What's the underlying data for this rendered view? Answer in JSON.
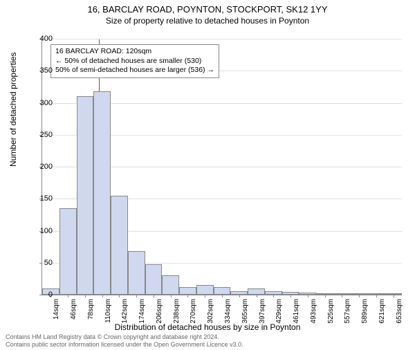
{
  "title": "16, BARCLAY ROAD, POYNTON, STOCKPORT, SK12 1YY",
  "subtitle": "Size of property relative to detached houses in Poynton",
  "ylabel": "Number of detached properties",
  "xlabel": "Distribution of detached houses by size in Poynton",
  "chart": {
    "type": "histogram",
    "ylim": [
      0,
      400
    ],
    "ytick_step": 50,
    "xtick_labels": [
      "14sqm",
      "46sqm",
      "78sqm",
      "110sqm",
      "142sqm",
      "174sqm",
      "206sqm",
      "238sqm",
      "270sqm",
      "302sqm",
      "334sqm",
      "365sqm",
      "397sqm",
      "429sqm",
      "461sqm",
      "493sqm",
      "525sqm",
      "557sqm",
      "589sqm",
      "621sqm",
      "653sqm"
    ],
    "values": [
      10,
      135,
      310,
      318,
      155,
      68,
      48,
      30,
      12,
      15,
      12,
      5,
      10,
      5,
      4,
      3,
      0,
      0,
      0,
      0,
      2
    ],
    "bar_color": "#cfd8ee",
    "bar_border": "#888888",
    "grid_color": "#e0e0e0",
    "background_color": "#ffffff",
    "reference_line": {
      "position_index": 3.3,
      "color": "#dd2222"
    }
  },
  "callout": {
    "lines": [
      "16 BARCLAY ROAD: 120sqm",
      "← 50% of detached houses are smaller (530)",
      "50% of semi-detached houses are larger (536) →"
    ]
  },
  "footer": {
    "line1": "Contains HM Land Registry data © Crown copyright and database right 2024.",
    "line2": "Contains public sector information licensed under the Open Government Licence v3.0."
  }
}
